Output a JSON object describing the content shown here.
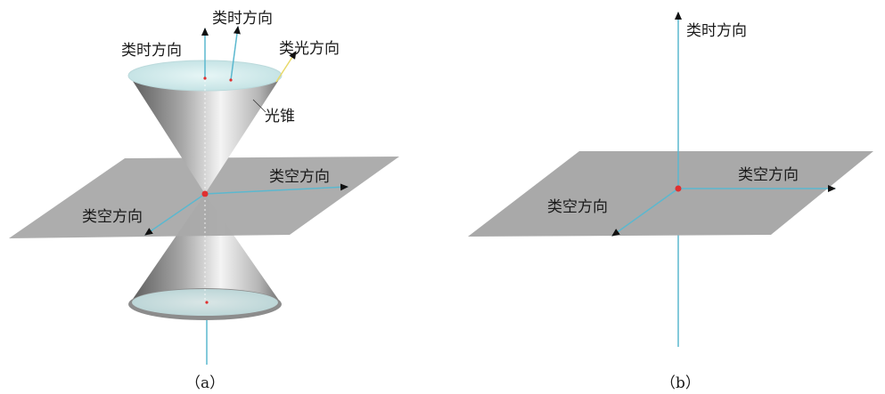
{
  "panel_a": {
    "caption": "（a）",
    "labels": {
      "timelike_left": "类时方向",
      "timelike_top": "类时方向",
      "lightlike": "类光方向",
      "light_cone": "光锥",
      "spacelike_right": "类空方向",
      "spacelike_left": "类空方向"
    }
  },
  "panel_b": {
    "caption": "（b）",
    "labels": {
      "timelike": "类时方向",
      "spacelike_right": "类空方向",
      "spacelike_left": "类空方向"
    }
  },
  "colors": {
    "plane": "#a9a9a9",
    "axis": "#5bb8cf",
    "origin": "#e03030",
    "cone_dark": "#6e6e6e",
    "cone_light": "#f2f2f2",
    "cone_top": "#d8eef0",
    "lightlike": "#e8d96a"
  }
}
